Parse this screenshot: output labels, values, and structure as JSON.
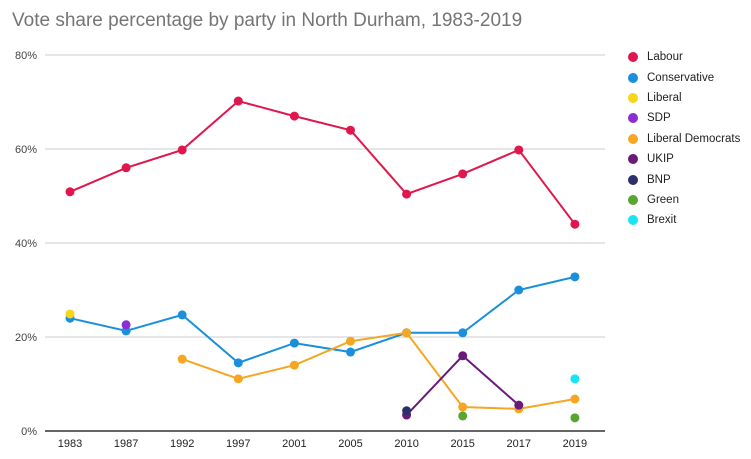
{
  "chart_data": {
    "type": "line",
    "title": "Vote share percentage by party in North Durham, 1983-2019",
    "xlabel": "",
    "ylabel": "",
    "categories": [
      "1983",
      "1987",
      "1992",
      "1997",
      "2001",
      "2005",
      "2010",
      "2015",
      "2017",
      "2019"
    ],
    "ylim": [
      0,
      80
    ],
    "yticks": [
      "0%",
      "20%",
      "40%",
      "60%",
      "80%"
    ],
    "grid": true,
    "legend": "right",
    "series": [
      {
        "name": "Labour",
        "color": "#e0174d",
        "values": [
          50.9,
          56.0,
          59.8,
          70.2,
          67.0,
          64.0,
          50.4,
          54.7,
          59.8,
          44.0
        ]
      },
      {
        "name": "Conservative",
        "color": "#1a8fdc",
        "values": [
          24.0,
          21.3,
          24.7,
          14.5,
          18.7,
          16.8,
          20.9,
          20.9,
          30.0,
          32.8
        ]
      },
      {
        "name": "Liberal",
        "color": "#f7d618",
        "values": [
          24.9,
          null,
          null,
          null,
          null,
          null,
          null,
          null,
          null,
          null
        ]
      },
      {
        "name": "SDP",
        "color": "#8b2fd0",
        "values": [
          null,
          22.6,
          null,
          null,
          null,
          null,
          null,
          null,
          null,
          null
        ]
      },
      {
        "name": "Liberal Democrats",
        "color": "#f5a623",
        "values": [
          null,
          null,
          15.3,
          11.1,
          14.0,
          19.1,
          20.9,
          5.1,
          4.7,
          6.8
        ]
      },
      {
        "name": "UKIP",
        "color": "#6a1b7a",
        "values": [
          null,
          null,
          null,
          null,
          null,
          null,
          3.4,
          16.0,
          5.5,
          null
        ]
      },
      {
        "name": "BNP",
        "color": "#2b2f6b",
        "values": [
          null,
          null,
          null,
          null,
          null,
          null,
          4.3,
          null,
          null,
          null
        ]
      },
      {
        "name": "Green",
        "color": "#59a532",
        "values": [
          null,
          null,
          null,
          null,
          null,
          null,
          null,
          3.2,
          null,
          2.8
        ]
      },
      {
        "name": "Brexit",
        "color": "#17e6f2",
        "values": [
          null,
          null,
          null,
          null,
          null,
          null,
          null,
          null,
          null,
          11.1
        ]
      }
    ]
  }
}
